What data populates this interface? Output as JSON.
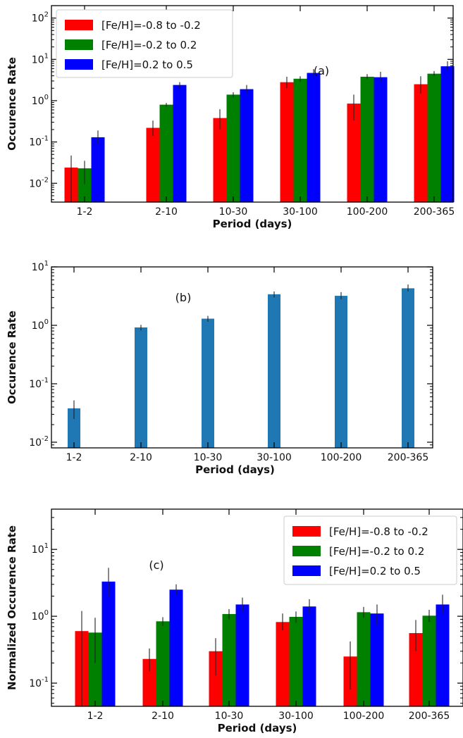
{
  "chart_data": [
    {
      "type": "bar",
      "panel_label": "(a)",
      "xlabel": "Period (days)",
      "ylabel": "Occurence Rate",
      "yscale": "log",
      "ylim": [
        0.0035,
        200
      ],
      "yticks": [
        0.01,
        0.1,
        1,
        10,
        100
      ],
      "categories": [
        "1-2",
        "2-10",
        "10-30",
        "30-100",
        "100-200",
        "200-365"
      ],
      "legend_position": "top-left",
      "series": [
        {
          "name": "[Fe/H]=-0.8 to -0.2",
          "color": "#ff0000",
          "values": [
            0.024,
            0.22,
            0.38,
            2.8,
            0.85,
            2.5
          ],
          "err_low": [
            0.0035,
            0.14,
            0.2,
            2.0,
            0.33,
            1.5
          ],
          "err_high": [
            0.047,
            0.33,
            0.62,
            3.8,
            1.4,
            3.9
          ]
        },
        {
          "name": "[Fe/H]=-0.2 to 0.2",
          "color": "#008000",
          "values": [
            0.023,
            0.8,
            1.4,
            3.4,
            3.8,
            4.5
          ],
          "err_low": [
            0.0095,
            0.72,
            1.2,
            2.9,
            3.3,
            3.9
          ],
          "err_high": [
            0.035,
            0.88,
            1.6,
            3.9,
            4.4,
            5.2
          ]
        },
        {
          "name": "[Fe/H]=0.2 to 0.5",
          "color": "#0000ff",
          "values": [
            0.13,
            2.4,
            1.9,
            4.7,
            3.7,
            6.8
          ],
          "err_low": [
            0.09,
            2.0,
            1.5,
            3.9,
            3.0,
            5.5
          ],
          "err_high": [
            0.19,
            2.8,
            2.4,
            5.8,
            5.0,
            9.0
          ]
        }
      ]
    },
    {
      "type": "bar",
      "panel_label": "(b)",
      "xlabel": "Period (days)",
      "ylabel": "Occurence Rate",
      "yscale": "log",
      "ylim": [
        0.008,
        10
      ],
      "yticks": [
        0.01,
        0.1,
        1,
        10
      ],
      "categories": [
        "1-2",
        "2-10",
        "10-30",
        "30-100",
        "100-200",
        "200-365"
      ],
      "series": [
        {
          "color": "#1f77b4",
          "values": [
            0.038,
            0.92,
            1.3,
            3.4,
            3.2,
            4.3
          ],
          "err_low": [
            0.025,
            0.82,
            1.15,
            3.0,
            2.8,
            3.8
          ],
          "err_high": [
            0.052,
            1.02,
            1.45,
            3.8,
            3.7,
            5.0
          ]
        }
      ]
    },
    {
      "type": "bar",
      "panel_label": "(c)",
      "xlabel": "Period (days)",
      "ylabel": "Normalized Occurence Rate",
      "yscale": "log",
      "ylim": [
        0.045,
        40
      ],
      "yticks": [
        0.1,
        1,
        10
      ],
      "categories": [
        "1-2",
        "2-10",
        "10-30",
        "30-100",
        "100-200",
        "200-365"
      ],
      "legend_position": "top-right",
      "series": [
        {
          "name": "[Fe/H]=-0.8 to -0.2",
          "color": "#ff0000",
          "values": [
            0.6,
            0.23,
            0.3,
            0.82,
            0.25,
            0.56
          ],
          "err_low": [
            0.045,
            0.15,
            0.13,
            0.62,
            0.08,
            0.3
          ],
          "err_high": [
            1.2,
            0.33,
            0.47,
            1.1,
            0.42,
            0.88
          ]
        },
        {
          "name": "[Fe/H]=-0.2 to 0.2",
          "color": "#008000",
          "values": [
            0.57,
            0.84,
            1.08,
            0.98,
            1.15,
            1.02
          ],
          "err_low": [
            0.2,
            0.72,
            0.9,
            0.8,
            0.95,
            0.82
          ],
          "err_high": [
            0.95,
            0.97,
            1.28,
            1.18,
            1.38,
            1.25
          ]
        },
        {
          "name": "[Fe/H]=0.2 to 0.5",
          "color": "#0000ff",
          "values": [
            3.3,
            2.5,
            1.5,
            1.4,
            1.1,
            1.5
          ],
          "err_low": [
            2.0,
            2.1,
            1.2,
            1.1,
            0.75,
            1.1
          ],
          "err_high": [
            5.3,
            3.0,
            1.9,
            1.8,
            1.5,
            2.1
          ]
        }
      ]
    }
  ]
}
